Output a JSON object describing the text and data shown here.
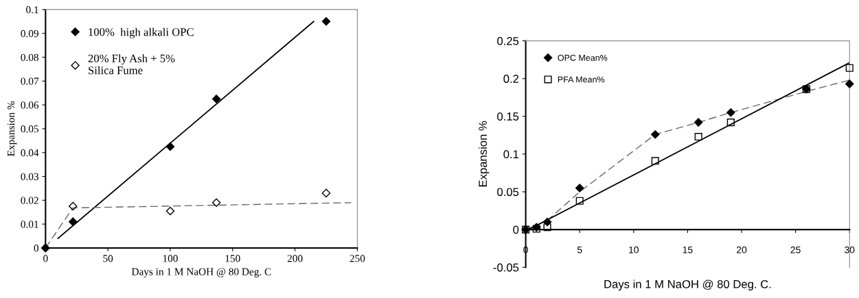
{
  "chart_data": [
    {
      "type": "scatter",
      "xlabel": "Days in 1 M NaOH @ 80 Deg. C",
      "ylabel": "Expansion %",
      "xlim": [
        0,
        250
      ],
      "xticks": [
        0,
        50,
        100,
        150,
        200,
        250
      ],
      "ylim": [
        0,
        0.1
      ],
      "yticks": [
        0,
        0.01,
        0.02,
        0.03,
        0.04,
        0.05,
        0.06,
        0.07,
        0.08,
        0.09,
        0.1
      ],
      "grid": false,
      "legend": "top left",
      "series": [
        {
          "name": "100%  high alkali OPC",
          "marker": "diamond",
          "color": "#000000",
          "x": [
            0,
            22,
            100,
            137,
            225
          ],
          "values": [
            0,
            0.011,
            0.0425,
            0.0625,
            0.095
          ]
        },
        {
          "name": "20% Fly Ash + 5%\nSilica Fume",
          "marker": "diamond",
          "color": "#000000",
          "x": [
            0,
            22,
            100,
            137,
            225
          ],
          "values": [
            0,
            0.0175,
            0.0155,
            0.019,
            0.023
          ]
        },
        {
          "type": "line",
          "line_style": "solid",
          "color": "#000000",
          "x": [
            10,
            215
          ],
          "values": [
            0.004,
            0.095
          ]
        },
        {
          "type": "line",
          "line_style": "dashed",
          "color": "#666666",
          "x": [
            0,
            22,
            245
          ],
          "values": [
            0,
            0.0168,
            0.019
          ]
        }
      ]
    },
    {
      "type": "scatter",
      "xlabel": "Days in 1 M NaOH @ 80 Deg. C.",
      "ylabel": "Expansion %",
      "xlim": [
        0,
        30
      ],
      "xticks": [
        0,
        5,
        10,
        15,
        20,
        25,
        30
      ],
      "ylim": [
        -0.05,
        0.25
      ],
      "yticks": [
        -0.05,
        0,
        0.05,
        0.1,
        0.15,
        0.2,
        0.25
      ],
      "grid": false,
      "legend": "top left",
      "series": [
        {
          "name": "OPC Mean%",
          "marker": "diamond",
          "color": "#000000",
          "x": [
            0,
            1,
            2,
            5,
            12,
            16,
            19,
            26,
            30
          ],
          "values": [
            0,
            0.003,
            0.01,
            0.055,
            0.126,
            0.142,
            0.155,
            0.186,
            0.193
          ]
        },
        {
          "name": "PFA Mean%",
          "marker": "square",
          "color": "#000000",
          "x": [
            0,
            1,
            2,
            5,
            12,
            16,
            19,
            26,
            30
          ],
          "values": [
            0,
            0.001,
            0.003,
            0.038,
            0.091,
            0.123,
            0.142,
            0.186,
            0.214
          ]
        },
        {
          "type": "line",
          "line_style": "dashed",
          "color": "#666666",
          "x": [
            0,
            2,
            5,
            12,
            16,
            19,
            26,
            30
          ],
          "values": [
            0,
            0.012,
            0.05,
            0.126,
            0.142,
            0.155,
            0.183,
            0.198
          ]
        },
        {
          "type": "line",
          "line_style": "solid",
          "color": "#000000",
          "x": [
            0,
            30
          ],
          "values": [
            -0.002,
            0.221
          ]
        }
      ]
    }
  ]
}
